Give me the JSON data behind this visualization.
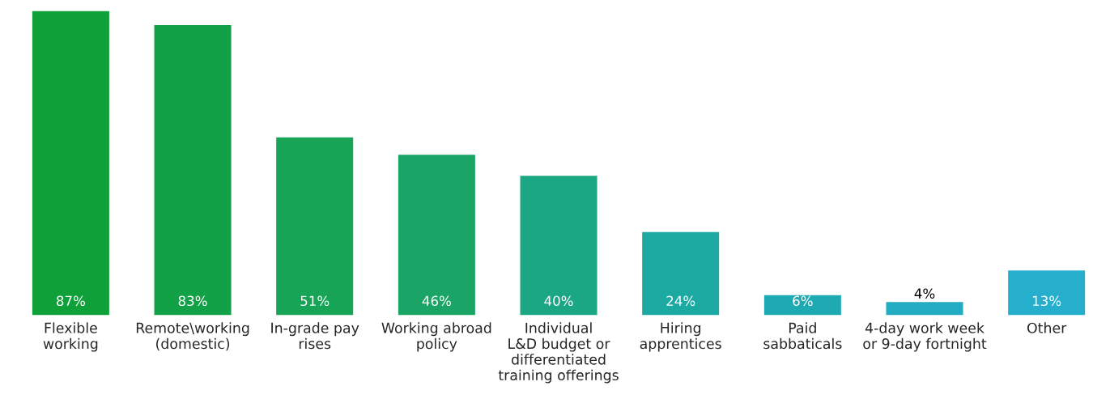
{
  "chart_data": {
    "type": "bar",
    "categories": [
      "Flexible\nworking",
      "Remote\\working\n(domestic)",
      "In-grade pay\nrises",
      "Working abroad\npolicy",
      "Individual\nL&D budget or\ndifferentiated\ntraining offerings",
      "Hiring\napprentices",
      "Paid\nsabbaticals",
      "4-day work week\nor 9-day fortnight",
      "Other"
    ],
    "values": [
      87,
      83,
      51,
      46,
      40,
      24,
      6,
      4,
      13
    ],
    "colors": [
      "#10a03a",
      "#12a146",
      "#17a456",
      "#1aa566",
      "#1ba784",
      "#1ca9a2",
      "#1eaab2",
      "#21acc2",
      "#26afcc"
    ],
    "value_labels": [
      "87%",
      "83%",
      "51%",
      "46%",
      "40%",
      "24%",
      "6%",
      "4%",
      "13%"
    ],
    "grid": false,
    "legend": false
  }
}
